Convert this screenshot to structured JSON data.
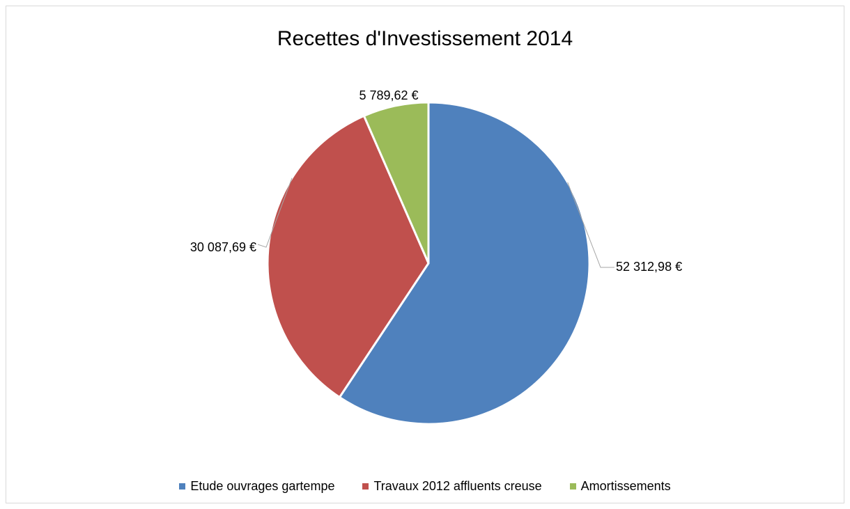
{
  "chart_data": {
    "type": "pie",
    "title": "Recettes d'Investissement 2014",
    "categories": [
      "Etude ouvrages gartempe",
      "Travaux 2012 affluents creuse",
      "Amortissements"
    ],
    "values": [
      52312.98,
      30087.69,
      5789.62
    ],
    "data_labels": [
      "52 312,98 €",
      "30 087,69 €",
      "5 789,62 €"
    ],
    "colors": [
      "#4f81bd",
      "#c0504d",
      "#9bbb59"
    ],
    "legend_position": "bottom",
    "start_angle": "top, clockwise"
  }
}
